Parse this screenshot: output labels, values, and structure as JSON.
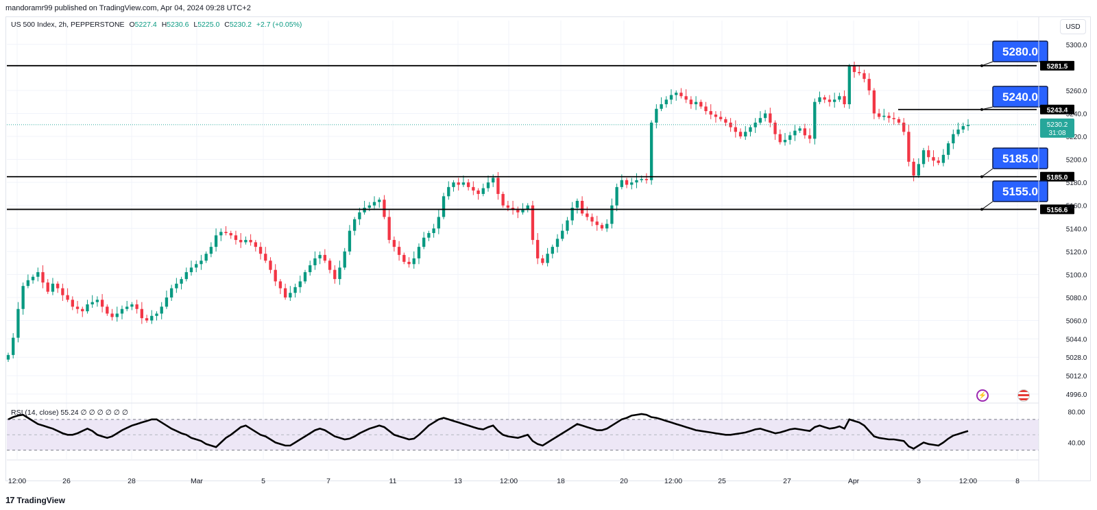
{
  "header": {
    "published_line": "mandoramr99 published on TradingView.com, Apr 04, 2024 09:28 UTC+2"
  },
  "legend": {
    "symbol": "US 500 Index, 2h, PEPPERSTONE",
    "o_label": "O",
    "o_value": "5227.4",
    "h_label": "H",
    "h_value": "5230.6",
    "l_label": "L",
    "l_value": "5225.0",
    "c_label": "C",
    "c_value": "5230.2",
    "change": "+2.7 (+0.05%)"
  },
  "currency_button": "USD",
  "price_axis": {
    "ticks": [
      "5300.0",
      "5260.0",
      "5240.0",
      "5220.0",
      "5200.0",
      "5180.0",
      "5160.0",
      "5140.0",
      "5120.0",
      "5100.0",
      "5080.0",
      "5060.0",
      "5044.0",
      "5028.0",
      "5012.0",
      "4996.0"
    ],
    "current_price": "5230.2",
    "countdown": "31:08"
  },
  "levels": [
    {
      "price": "5281.5",
      "label": "5280.0"
    },
    {
      "price": "5243.4",
      "label": "5240.0"
    },
    {
      "price": "5185.0",
      "label": "5185.0"
    },
    {
      "price": "5156.6",
      "label": "5155.0"
    }
  ],
  "rsi": {
    "legend": "RSI (14, close)  55.24  ∅  ∅  ∅  ∅  ∅  ∅",
    "ticks": [
      "80.00",
      "40.00"
    ],
    "upper": 70,
    "lower": 30
  },
  "time_axis": [
    "12:00",
    "26",
    "28",
    "Mar",
    "5",
    "7",
    "11",
    "13",
    "12:00",
    "18",
    "20",
    "12:00",
    "25",
    "27",
    "Apr",
    "3",
    "12:00",
    "8"
  ],
  "footer": {
    "brand": "TradingView",
    "mark": "17"
  },
  "colors": {
    "up": "#089981",
    "down": "#f23645",
    "label_bg": "#2962ff",
    "rsi_band": "#ede7f6",
    "current": "#26a69a"
  },
  "chart_data": {
    "type": "candlestick",
    "title": "US 500 Index, 2h, PEPPERSTONE",
    "ylim": [
      4990,
      5310
    ],
    "closes": [
      5030,
      5045,
      5070,
      5090,
      5095,
      5098,
      5102,
      5093,
      5085,
      5092,
      5088,
      5082,
      5078,
      5072,
      5070,
      5068,
      5074,
      5076,
      5078,
      5072,
      5066,
      5063,
      5066,
      5070,
      5072,
      5074,
      5070,
      5062,
      5060,
      5064,
      5066,
      5072,
      5080,
      5088,
      5092,
      5096,
      5102,
      5106,
      5109,
      5112,
      5118,
      5124,
      5134,
      5137,
      5136,
      5134,
      5130,
      5128,
      5130,
      5128,
      5124,
      5118,
      5112,
      5104,
      5094,
      5088,
      5080,
      5084,
      5089,
      5094,
      5102,
      5108,
      5114,
      5117,
      5112,
      5104,
      5096,
      5106,
      5120,
      5138,
      5148,
      5154,
      5158,
      5160,
      5163,
      5165,
      5150,
      5130,
      5124,
      5117,
      5111,
      5109,
      5114,
      5124,
      5132,
      5136,
      5140,
      5150,
      5168,
      5176,
      5180,
      5178,
      5180,
      5176,
      5173,
      5170,
      5175,
      5180,
      5184,
      5170,
      5160,
      5158,
      5156,
      5154,
      5157,
      5160,
      5130,
      5114,
      5110,
      5118,
      5124,
      5131,
      5138,
      5147,
      5158,
      5164,
      5153,
      5150,
      5146,
      5143,
      5140,
      5144,
      5160,
      5176,
      5182,
      5178,
      5180,
      5182,
      5183,
      5182,
      5232,
      5244,
      5248,
      5252,
      5256,
      5258,
      5255,
      5252,
      5248,
      5250,
      5246,
      5242,
      5239,
      5237,
      5235,
      5232,
      5228,
      5224,
      5220,
      5224,
      5228,
      5232,
      5236,
      5240,
      5232,
      5222,
      5215,
      5217,
      5221,
      5225,
      5227,
      5221,
      5218,
      5250,
      5254,
      5252,
      5250,
      5252,
      5255,
      5248,
      5281,
      5276,
      5275,
      5270,
      5260,
      5240,
      5237,
      5238,
      5236,
      5235,
      5232,
      5224,
      5198,
      5186,
      5196,
      5208,
      5202,
      5199,
      5197,
      5204,
      5214,
      5222,
      5226,
      5229,
      5230
    ],
    "rsi_values": [
      70,
      73,
      75,
      76,
      72,
      68,
      64,
      62,
      60,
      58,
      55,
      52,
      50,
      50,
      52,
      55,
      58,
      55,
      50,
      48,
      46,
      48,
      52,
      56,
      59,
      62,
      64,
      66,
      68,
      70,
      70,
      66,
      62,
      58,
      55,
      52,
      50,
      46,
      44,
      42,
      38,
      36,
      34,
      40,
      46,
      50,
      55,
      60,
      62,
      58,
      54,
      50,
      48,
      44,
      40,
      38,
      36,
      36,
      40,
      44,
      48,
      52,
      56,
      58,
      56,
      52,
      48,
      46,
      44,
      45,
      48,
      52,
      55,
      58,
      60,
      62,
      60,
      55,
      50,
      48,
      46,
      44,
      45,
      50,
      56,
      62,
      66,
      70,
      72,
      70,
      68,
      66,
      64,
      62,
      60,
      58,
      57,
      60,
      62,
      55,
      50,
      48,
      47,
      46,
      48,
      50,
      42,
      38,
      36,
      40,
      44,
      48,
      52,
      56,
      60,
      64,
      62,
      60,
      58,
      56,
      56,
      58,
      62,
      66,
      70,
      72,
      75,
      76,
      77,
      76,
      73,
      72,
      70,
      68,
      66,
      64,
      62,
      60,
      58,
      56,
      55,
      54,
      53,
      52,
      51,
      50,
      50,
      51,
      52,
      53,
      55,
      57,
      58,
      56,
      54,
      52,
      53,
      55,
      57,
      58,
      57,
      56,
      55,
      60,
      62,
      60,
      58,
      59,
      61,
      58,
      70,
      68,
      66,
      62,
      55,
      48,
      46,
      45,
      44,
      44,
      43,
      42,
      35,
      32,
      36,
      40,
      38,
      37,
      36,
      40,
      45,
      49,
      51,
      53,
      55
    ]
  }
}
